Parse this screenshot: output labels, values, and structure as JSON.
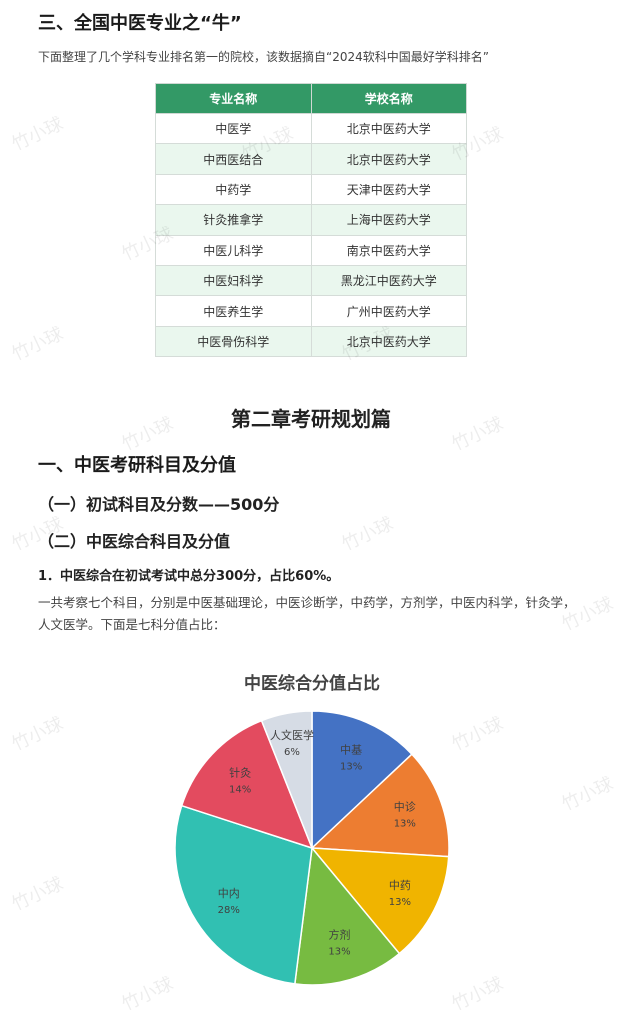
{
  "section3_title": "三、全国中医专业之“牛”",
  "section3_intro": "下面整理了几个学科专业排名第一的院校，该数据摘自“2024软科中国最好学科排名”",
  "table": {
    "headers": [
      "专业名称",
      "学校名称"
    ],
    "rows": [
      [
        "中医学",
        "北京中医药大学"
      ],
      [
        "中西医结合",
        "北京中医药大学"
      ],
      [
        "中药学",
        "天津中医药大学"
      ],
      [
        "针灸推拿学",
        "上海中医药大学"
      ],
      [
        "中医儿科学",
        "南京中医药大学"
      ],
      [
        "中医妇科学",
        "黑龙江中医药大学"
      ],
      [
        "中医养生学",
        "广州中医药大学"
      ],
      [
        "中医骨伤科学",
        "北京中医药大学"
      ]
    ],
    "header_color": "#339966",
    "alt_row_color": "#eaf7ee"
  },
  "chapter_title": "第二章考研规划篇",
  "h1": "一、中医考研科目及分值",
  "h1_sub1": "（一）初试科目及分数——500分",
  "h1_sub2": "（二）中医综合科目及分值",
  "point1": "1．中医综合在初试考试中总分300分，占比60%。",
  "point1_text": "一共考察七个科目，分别是中医基础理论，中医诊断学，中药学，方剂学，中医内科学，针灸学，人文医学。下面是七科分值占比：",
  "watermark": "竹小球",
  "chart_data": {
    "type": "pie",
    "title": "中医综合分值占比",
    "categories": [
      "中基",
      "中诊",
      "中药",
      "方剂",
      "中内",
      "针灸",
      "人文医学"
    ],
    "values": [
      13,
      13,
      13,
      13,
      28,
      14,
      6
    ],
    "labels": [
      "13%",
      "13%",
      "13%",
      "13%",
      "28%",
      "14%",
      "6%"
    ],
    "colors": [
      "#4472c4",
      "#ed7d31",
      "#f0b400",
      "#77bb41",
      "#31c0b2",
      "#e34b5f",
      "#d6dce5"
    ],
    "start": "top, clockwise",
    "legend": "none"
  }
}
